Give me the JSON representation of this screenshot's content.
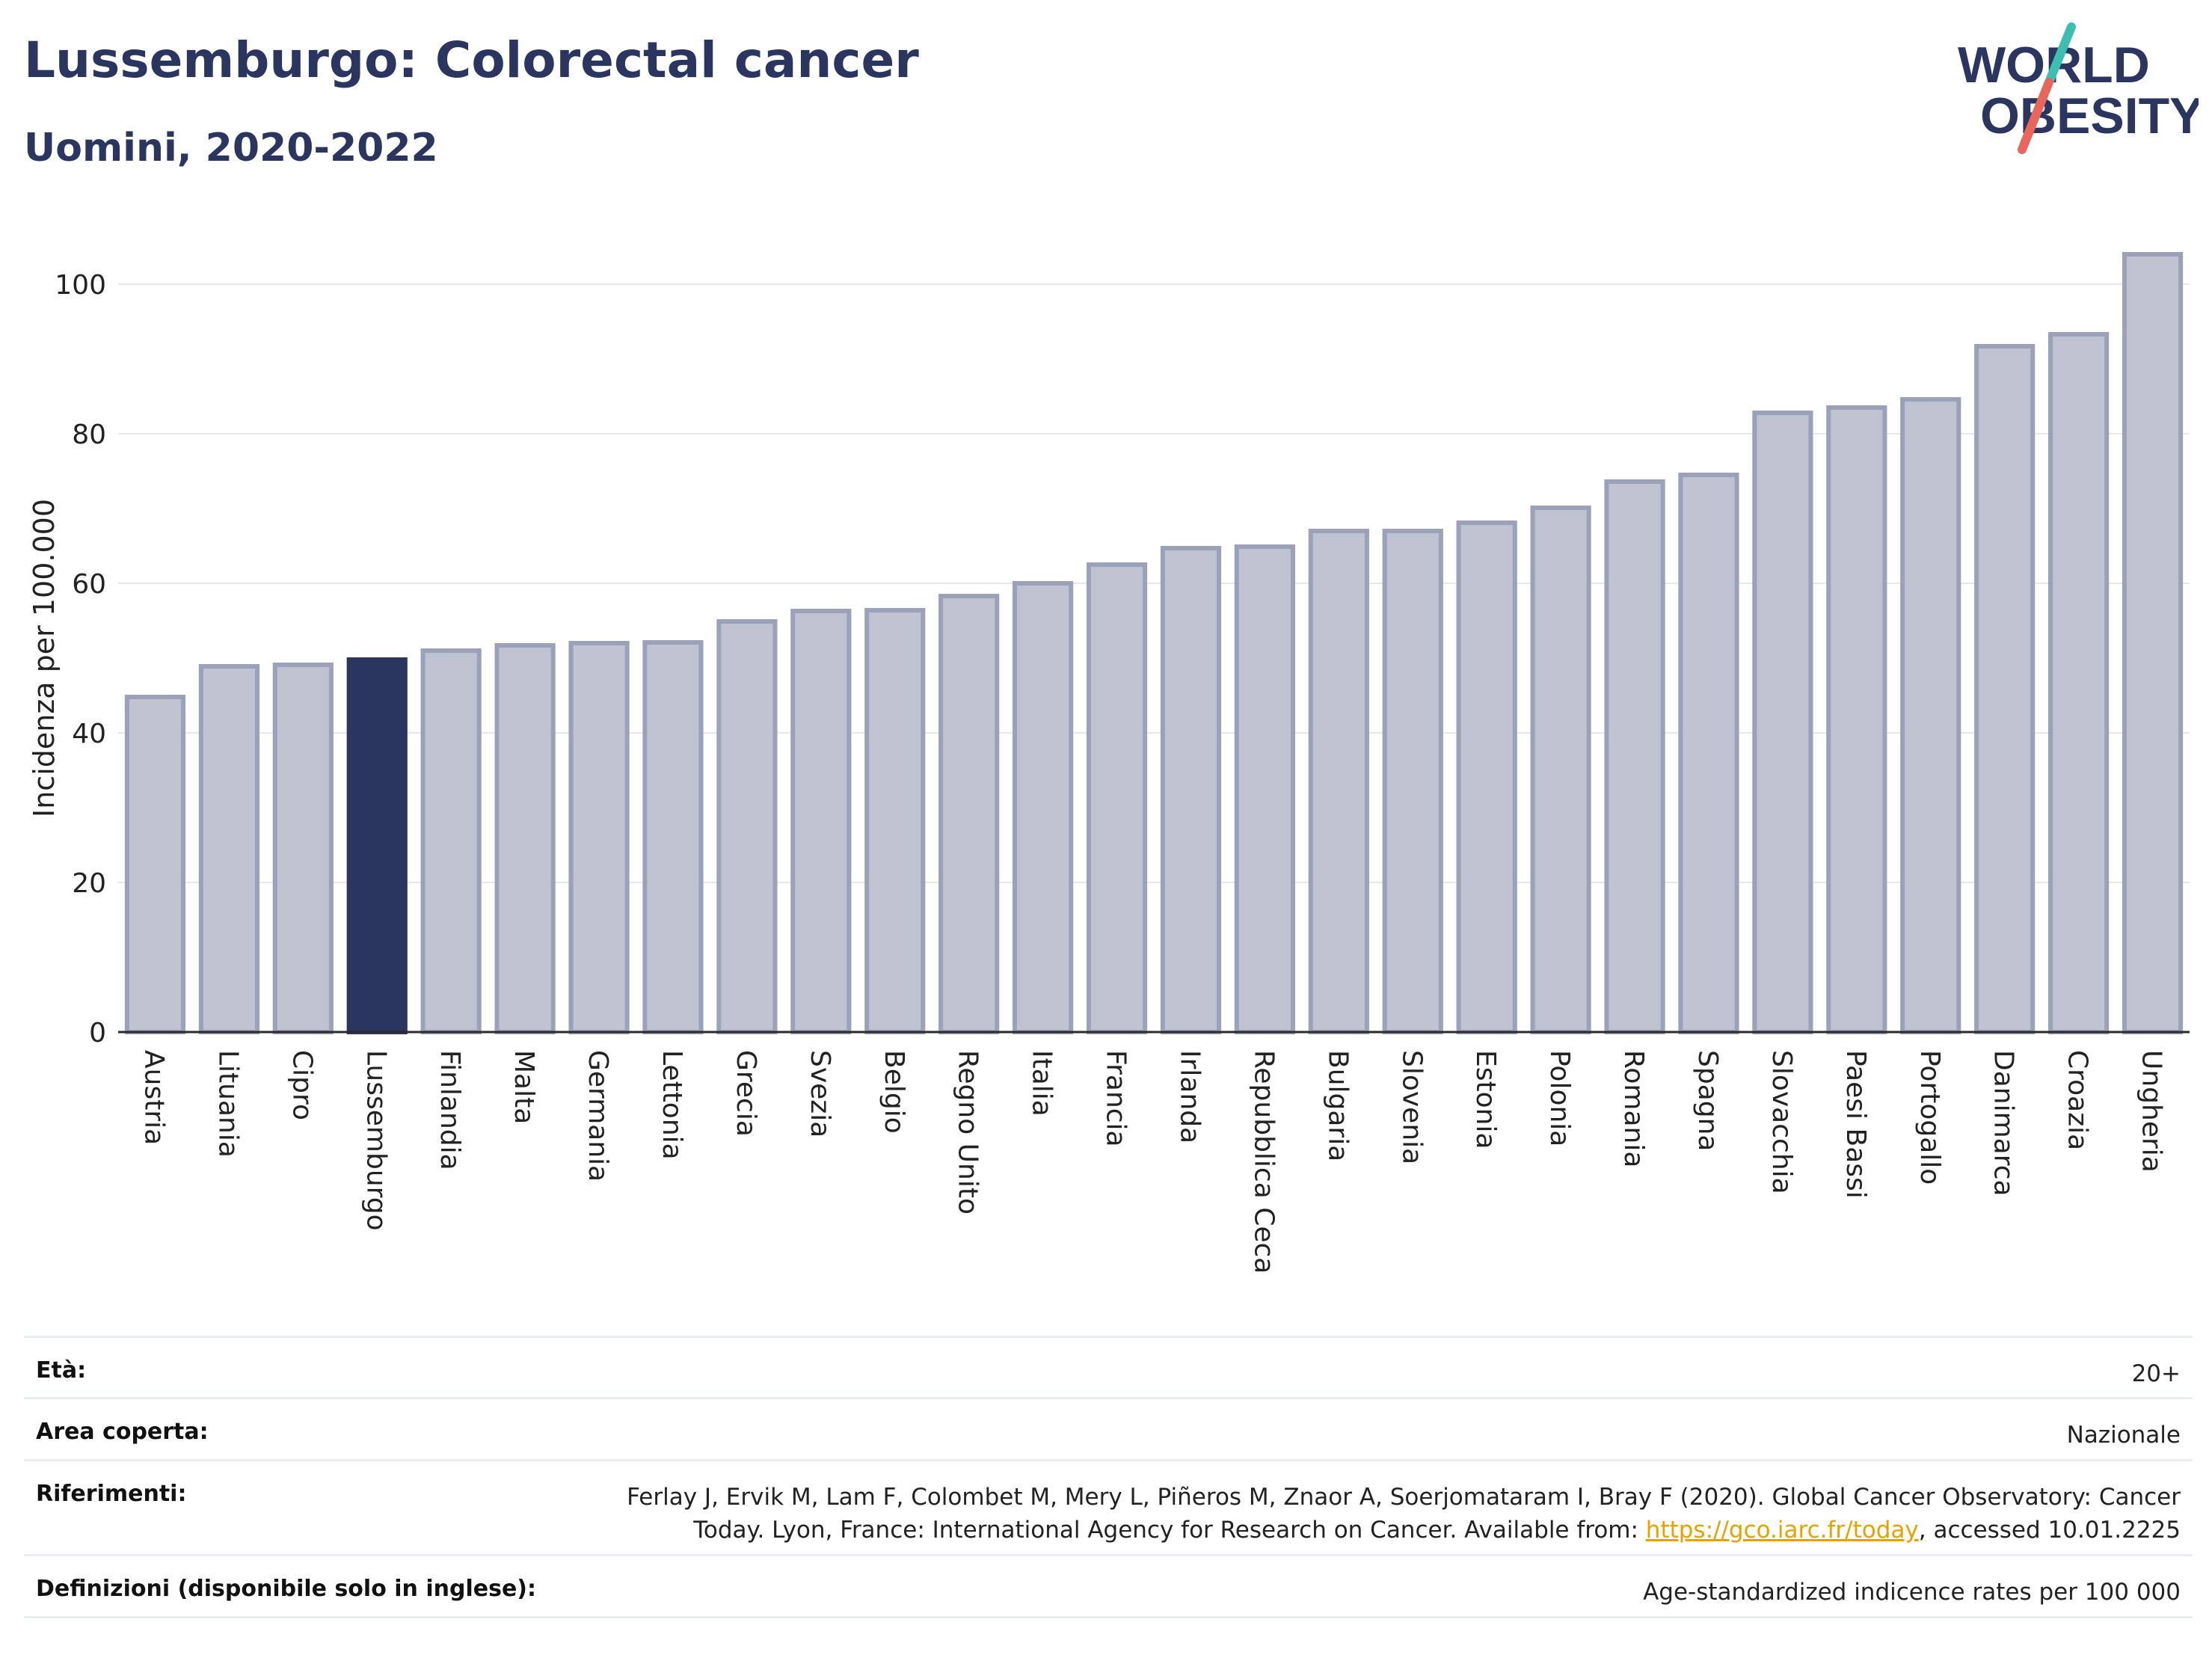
{
  "header": {
    "title": "Lussemburgo: Colorectal cancer",
    "subtitle": "Uomini, 2020-2022"
  },
  "logo": {
    "line1": "WORLD",
    "line2": "OBESITY",
    "text_color": "#2b3660",
    "slash_color_top": "#3cbfb0",
    "slash_color_bottom": "#e8665a"
  },
  "chart_data": {
    "type": "bar",
    "ylabel": "Incidenza per 100.000",
    "ylim": [
      0,
      108
    ],
    "yticks": [
      0,
      20,
      40,
      60,
      80,
      100
    ],
    "grid": true,
    "highlight": "Lussemburgo",
    "colors": {
      "bar": "#bfc3d1",
      "bar_edge": "#9aa1b8",
      "highlight": "#2b3660",
      "grid": "#e6e8ee",
      "axis": "#2b2b2b"
    },
    "categories": [
      "Austria",
      "Lituania",
      "Cipro",
      "Lussemburgo",
      "Finlandia",
      "Malta",
      "Germania",
      "Lettonia",
      "Grecia",
      "Svezia",
      "Belgio",
      "Regno Unito",
      "Italia",
      "Francia",
      "Irlanda",
      "Repubblica Ceca",
      "Bulgaria",
      "Slovenia",
      "Estonia",
      "Polonia",
      "Romania",
      "Spagna",
      "Slovacchia",
      "Paesi Bassi",
      "Portogallo",
      "Danimarca",
      "Croazia",
      "Ungheria"
    ],
    "values": [
      44.8,
      48.9,
      49.1,
      49.8,
      51.0,
      51.7,
      52.0,
      52.1,
      54.9,
      56.3,
      56.4,
      58.3,
      60.0,
      62.5,
      64.7,
      64.9,
      67.0,
      67.0,
      68.1,
      70.1,
      73.6,
      74.5,
      82.8,
      83.5,
      84.6,
      91.7,
      93.3,
      104.0
    ]
  },
  "info": {
    "rows": [
      {
        "label": "Età:",
        "value": "20+"
      },
      {
        "label": "Area coperta:",
        "value": "Nazionale"
      },
      {
        "label": "Riferimenti:",
        "value_before_link": "Ferlay J, Ervik M, Lam F, Colombet M, Mery L, Piñeros M, Znaor A, Soerjomataram I, Bray F (2020). Global Cancer Observatory: Cancer Today. Lyon, France: International Agency for Research on Cancer. Available from: ",
        "link": "https://gco.iarc.fr/today",
        "value_after_link": ", accessed 10.01.2225"
      },
      {
        "label": "Definizioni (disponibile solo in inglese):",
        "value": "Age-standardized indicence rates per 100 000"
      }
    ]
  }
}
